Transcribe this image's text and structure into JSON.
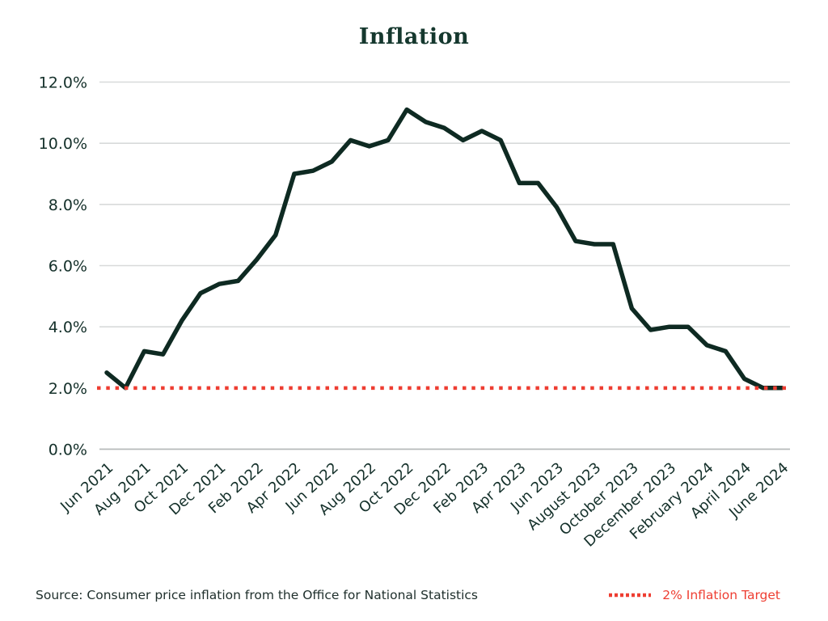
{
  "title": "Inflation",
  "footer": {
    "source": "Source: Consumer price inflation from the Office for National Statistics",
    "legend_label": "2% Inflation Target"
  },
  "colors": {
    "line": "#0e2a22",
    "target": "#ee3e32",
    "title": "#15382e",
    "tick": "#14302a",
    "grid": "#d8dada",
    "axis": "#b6baba",
    "text": "#20302d"
  },
  "chart_data": {
    "type": "line",
    "title": "Inflation",
    "series_name": "Consumer price inflation",
    "x": [
      "Jun 2021",
      "Jul 2021",
      "Aug 2021",
      "Sep 2021",
      "Oct 2021",
      "Nov 2021",
      "Dec 2021",
      "Jan 2022",
      "Feb 2022",
      "Mar 2022",
      "Apr 2022",
      "May 2022",
      "Jun 2022",
      "Jul 2022",
      "Aug 2022",
      "Sep 2022",
      "Oct 2022",
      "Nov 2022",
      "Dec 2022",
      "Jan 2023",
      "Feb 2023",
      "Mar 2023",
      "Apr 2023",
      "May 2023",
      "Jun 2023",
      "Jul 2023",
      "Aug 2023",
      "Sep 2023",
      "Oct 2023",
      "Nov 2023",
      "Dec 2023",
      "Jan 2024",
      "Feb 2024",
      "Mar 2024",
      "Apr 2024",
      "May 2024",
      "Jun 2024"
    ],
    "values": [
      2.5,
      2.0,
      3.2,
      3.1,
      4.2,
      5.1,
      5.4,
      5.5,
      6.2,
      7.0,
      9.0,
      9.1,
      9.4,
      10.1,
      9.9,
      10.1,
      11.1,
      10.7,
      10.5,
      10.1,
      10.4,
      10.1,
      8.7,
      8.7,
      7.9,
      6.8,
      6.7,
      6.7,
      4.6,
      3.9,
      4.0,
      4.0,
      3.4,
      3.2,
      2.3,
      2.0,
      2.0
    ],
    "x_tick_labels": [
      "Jun 2021",
      "Aug 2021",
      "Oct 2021",
      "Dec 2021",
      "Feb 2022",
      "Apr 2022",
      "Jun 2022",
      "Aug 2022",
      "Oct 2022",
      "Dec 2022",
      "Feb 2023",
      "Apr 2023",
      "Jun 2023",
      "August 2023",
      "October 2023",
      "December 2023",
      "February 2024",
      "April 2024",
      "June 2024"
    ],
    "x_tick_every": 2,
    "y_tick_labels": [
      "0.0%",
      "2.0%",
      "4.0%",
      "6.0%",
      "8.0%",
      "10.0%",
      "12.0%"
    ],
    "y_tick_values": [
      0,
      2,
      4,
      6,
      8,
      10,
      12
    ],
    "ylim": [
      0,
      12
    ],
    "grid": true,
    "gridline_values": [
      4,
      6,
      8,
      10,
      12
    ],
    "target_line": {
      "value": 2.0,
      "label": "2% Inflation Target"
    },
    "legend_position": "bottom-right"
  }
}
